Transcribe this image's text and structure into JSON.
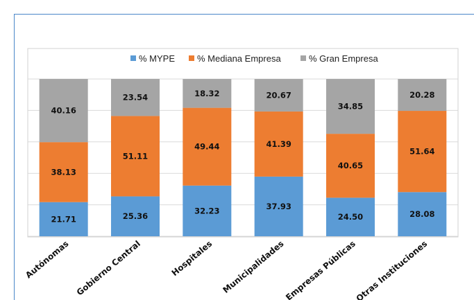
{
  "chart_data": {
    "type": "bar",
    "stacked": true,
    "categories": [
      "Autónomas",
      "Gobierno Central",
      "Hospitales",
      "Municipalidades",
      "Empresas Públicas",
      "Otras Instituciones"
    ],
    "series": [
      {
        "name": "% MYPE",
        "color": "#5b9bd5",
        "values": [
          21.71,
          25.36,
          32.23,
          37.93,
          24.5,
          28.08
        ]
      },
      {
        "name": "% Mediana Empresa",
        "color": "#ed7d31",
        "values": [
          38.13,
          51.11,
          49.44,
          41.39,
          40.65,
          51.64
        ]
      },
      {
        "name": "% Gran Empresa",
        "color": "#a5a5a5",
        "values": [
          40.16,
          23.54,
          18.32,
          20.67,
          34.85,
          20.28
        ]
      }
    ],
    "ylim": [
      0,
      100
    ],
    "grid": true,
    "legend": "top-center",
    "title": "",
    "xlabel": "",
    "ylabel": ""
  }
}
